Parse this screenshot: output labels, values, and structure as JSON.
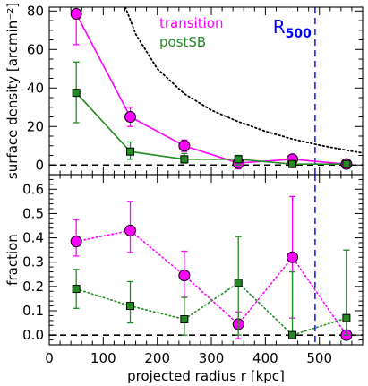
{
  "chart_data": [
    {
      "type": "line",
      "panel": "top",
      "ylabel": "surface density [arcmin⁻²]",
      "xlim": [
        0,
        580
      ],
      "ylim": [
        -5,
        82
      ],
      "y_ticks": [
        0,
        20,
        40,
        60,
        80
      ],
      "y_tick_labels": [
        "0",
        "20",
        "40",
        "60",
        "80"
      ],
      "x": [
        50,
        150,
        250,
        350,
        450,
        550
      ],
      "series": [
        {
          "name": "transition",
          "color": "#ff00ff",
          "marker": "circle",
          "line": "solid",
          "values": [
            78.5,
            25,
            10,
            1,
            3,
            0.5
          ],
          "err_low": [
            16,
            5,
            3,
            3,
            2,
            0
          ],
          "err_high": [
            5,
            5,
            3,
            3,
            2,
            0
          ]
        },
        {
          "name": "postSB",
          "color": "#228B22",
          "marker": "square",
          "line": "solid",
          "values": [
            37.5,
            7,
            3,
            3,
            0.5,
            0.5
          ],
          "err_low": [
            15.5,
            4,
            2,
            3,
            1,
            1
          ],
          "err_high": [
            16,
            5,
            3,
            2,
            1,
            1
          ]
        }
      ],
      "reference_lines": [
        {
          "type": "horizontal",
          "y": 0,
          "style": "dashed",
          "color": "#000000"
        },
        {
          "type": "vertical",
          "x": 492,
          "style": "dashed",
          "color": "#0000ff",
          "label": "R",
          "label_sub": "500"
        }
      ],
      "model_curve": {
        "style": "dotted",
        "color": "#000000",
        "x": [
          130,
          160,
          200,
          250,
          300,
          350,
          400,
          450,
          500,
          550,
          580
        ],
        "y": [
          90,
          68,
          50,
          37,
          28.5,
          22.5,
          17.5,
          13.5,
          10.3,
          7.7,
          6.3
        ]
      },
      "legend": [
        "transition",
        "postSB"
      ],
      "legend_position": "top-center"
    },
    {
      "type": "line",
      "panel": "bottom",
      "xlabel": "projected radius r [kpc]",
      "ylabel": "fraction",
      "xlim": [
        0,
        580
      ],
      "ylim": [
        -0.04,
        0.66
      ],
      "x_ticks": [
        0,
        100,
        200,
        300,
        400,
        500
      ],
      "x_tick_labels": [
        "0",
        "100",
        "200",
        "300",
        "400",
        "500"
      ],
      "y_ticks": [
        0,
        0.1,
        0.2,
        0.3,
        0.4,
        0.5,
        0.6
      ],
      "y_tick_labels": [
        "0.0",
        "0.1",
        "0.2",
        "0.3",
        "0.4",
        "0.5",
        "0.6"
      ],
      "x": [
        50,
        150,
        250,
        350,
        450,
        550
      ],
      "series": [
        {
          "name": "transition",
          "color": "#ff00ff",
          "marker": "circle",
          "line": "dotted",
          "values": [
            0.385,
            0.43,
            0.245,
            0.045,
            0.32,
            0.0
          ],
          "err_low": [
            0.06,
            0.09,
            0.09,
            0.06,
            0.25,
            0.0
          ],
          "err_high": [
            0.09,
            0.12,
            0.1,
            0.05,
            0.25,
            0.35
          ]
        },
        {
          "name": "postSB",
          "color": "#228B22",
          "marker": "square",
          "line": "dotted",
          "values": [
            0.19,
            0.12,
            0.065,
            0.215,
            0.0,
            0.07
          ],
          "err_low": [
            0.08,
            0.07,
            0.065,
            0.215,
            0.0,
            0.07
          ],
          "err_high": [
            0.08,
            0.1,
            0.09,
            0.19,
            0.26,
            0.28
          ]
        }
      ],
      "reference_lines": [
        {
          "type": "horizontal",
          "y": 0,
          "style": "dashed",
          "color": "#000000"
        },
        {
          "type": "vertical",
          "x": 492,
          "style": "dashed",
          "color": "#0000ff"
        }
      ]
    }
  ]
}
